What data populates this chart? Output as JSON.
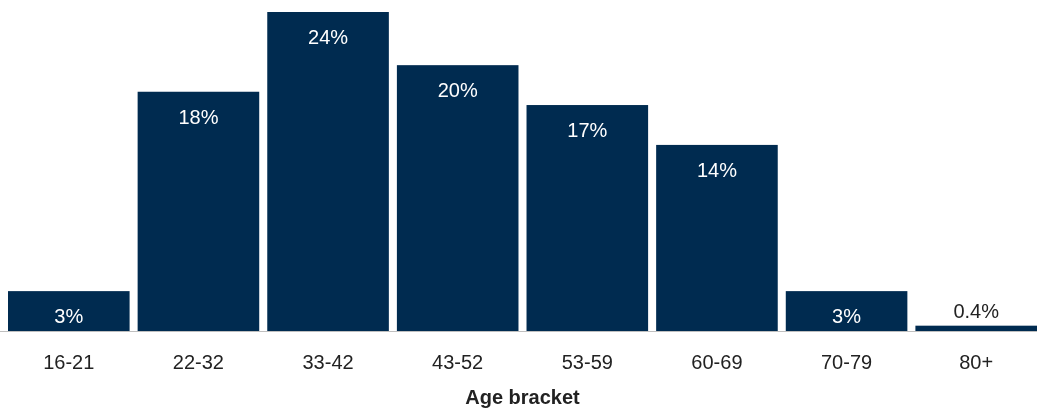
{
  "chart_data": {
    "type": "bar",
    "xlabel": "Age bracket",
    "categories": [
      "16-21",
      "22-32",
      "33-42",
      "43-52",
      "53-59",
      "60-69",
      "70-79",
      "80+"
    ],
    "values": [
      3,
      18,
      24,
      20,
      17,
      14,
      3,
      0.4
    ],
    "value_labels": [
      "3%",
      "18%",
      "24%",
      "20%",
      "17%",
      "14%",
      "3%",
      "0.4%"
    ],
    "color": "#002b50"
  }
}
